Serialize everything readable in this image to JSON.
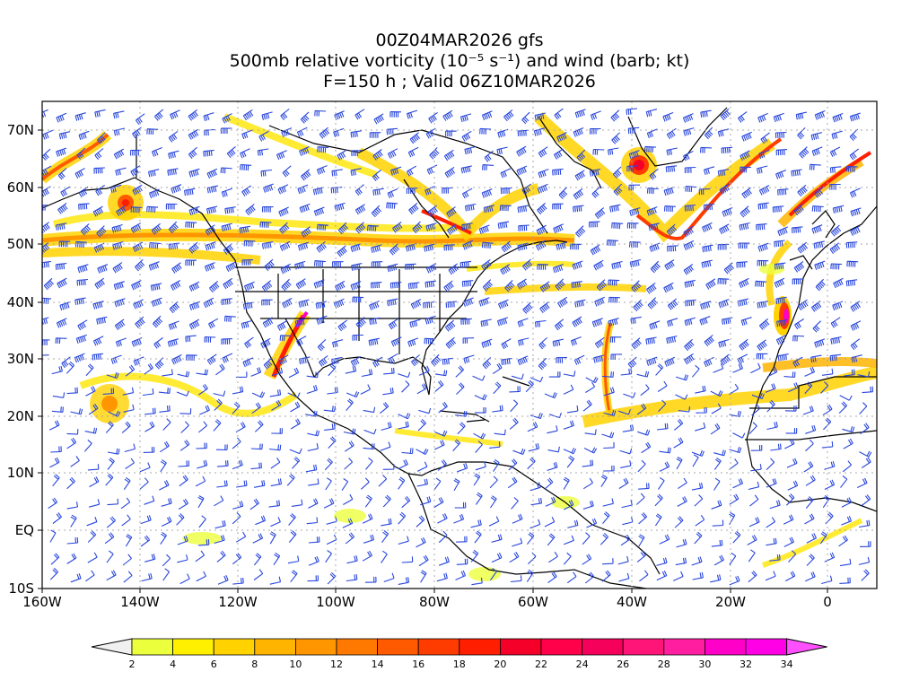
{
  "header": {
    "line1": "00Z04MAR2026 gfs",
    "line2": "500mb relative vorticity (10⁻⁵ s⁻¹) and wind (barb; kt)",
    "line3": "F=150 h ; Valid 06Z10MAR2026"
  },
  "axes": {
    "lat_labels": [
      "70N",
      "60N",
      "50N",
      "40N",
      "30N",
      "20N",
      "10N",
      "EQ",
      "10S"
    ],
    "lon_labels": [
      "160W",
      "140W",
      "120W",
      "100W",
      "80W",
      "60W",
      "40W",
      "20W",
      "0"
    ]
  },
  "colorbar": {
    "labels": [
      "2",
      "4",
      "6",
      "8",
      "10",
      "12",
      "14",
      "16",
      "18",
      "20",
      "22",
      "24",
      "26",
      "28",
      "30",
      "32",
      "34"
    ],
    "colors": [
      "#f0f0f0",
      "#ecff3c",
      "#fff000",
      "#ffd200",
      "#ffb400",
      "#ff9600",
      "#ff7800",
      "#ff5a00",
      "#ff3c00",
      "#ff1e00",
      "#f50028",
      "#ff004b",
      "#f5005a",
      "#ff1478",
      "#ff1ea0",
      "#ff00c8",
      "#ff00e6",
      "#ff50ff"
    ]
  },
  "colors": {
    "barbs": "#2846dc",
    "coast": "#000000",
    "grid": "#aaaaaa"
  }
}
